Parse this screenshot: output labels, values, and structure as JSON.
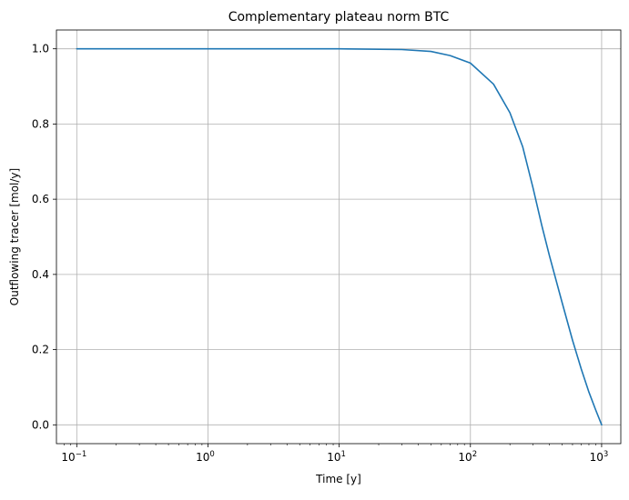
{
  "chart_data": {
    "type": "line",
    "title": "Complementary plateau norm BTC",
    "xlabel": "Time [y]",
    "ylabel": "Outflowing tracer [mol/y]",
    "xscale": "log",
    "xlim": [
      0.07,
      1400
    ],
    "ylim": [
      -0.05,
      1.05
    ],
    "grid": true,
    "x_ticks": [
      {
        "value": 0.1,
        "base": "10",
        "exp": "−1"
      },
      {
        "value": 1,
        "base": "10",
        "exp": "0"
      },
      {
        "value": 10,
        "base": "10",
        "exp": "1"
      },
      {
        "value": 100,
        "base": "10",
        "exp": "2"
      },
      {
        "value": 1000,
        "base": "10",
        "exp": "3"
      }
    ],
    "y_ticks": [
      {
        "value": 0.0,
        "label": "0.0"
      },
      {
        "value": 0.2,
        "label": "0.2"
      },
      {
        "value": 0.4,
        "label": "0.4"
      },
      {
        "value": 0.6,
        "label": "0.6"
      },
      {
        "value": 0.8,
        "label": "0.8"
      },
      {
        "value": 1.0,
        "label": "1.0"
      }
    ],
    "series": [
      {
        "color": "#1f77b4",
        "x": [
          0.1,
          1,
          10,
          30,
          50,
          70,
          100,
          150,
          200,
          250,
          300,
          350,
          400,
          500,
          600,
          700,
          800,
          900,
          1000
        ],
        "y": [
          1.0,
          1.0,
          1.0,
          0.998,
          0.993,
          0.982,
          0.962,
          0.906,
          0.83,
          0.74,
          0.63,
          0.53,
          0.45,
          0.325,
          0.225,
          0.148,
          0.087,
          0.04,
          0.0
        ]
      }
    ]
  }
}
